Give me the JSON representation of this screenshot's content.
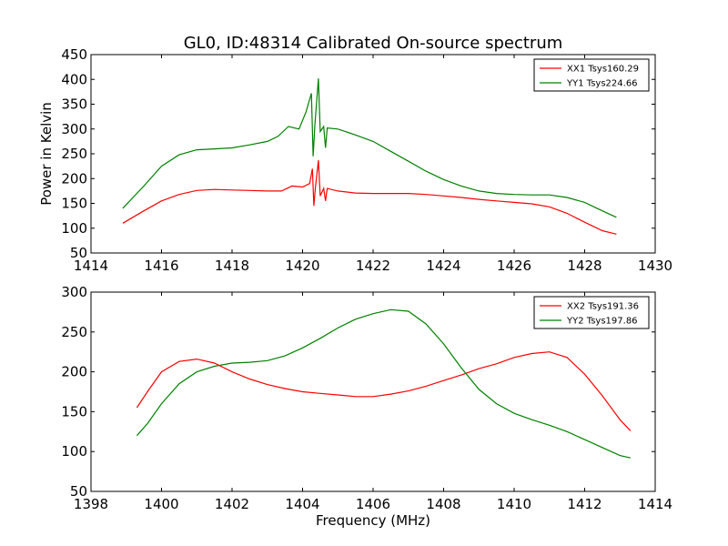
{
  "chart_data": [
    {
      "type": "line",
      "title": "GL0, ID:48314 Calibrated On-source spectrum",
      "xlabel": "",
      "ylabel": "Power in Kelvin",
      "xlim": [
        1414,
        1430
      ],
      "ylim": [
        50,
        450
      ],
      "xticks": [
        1414,
        1416,
        1418,
        1420,
        1422,
        1424,
        1426,
        1428,
        1430
      ],
      "yticks": [
        50,
        100,
        150,
        200,
        250,
        300,
        350,
        400,
        450
      ],
      "grid": false,
      "legend_position": "top-right",
      "series": [
        {
          "name": "XX1 Tsys160.29",
          "color": "#ff0000",
          "x": [
            1414.9,
            1415.5,
            1416.0,
            1416.5,
            1417.0,
            1417.5,
            1418.0,
            1418.5,
            1419.0,
            1419.4,
            1419.7,
            1420.0,
            1420.2,
            1420.28,
            1420.32,
            1420.36,
            1420.45,
            1420.5,
            1420.6,
            1420.65,
            1420.7,
            1421.0,
            1421.5,
            1422.0,
            1422.5,
            1423.0,
            1423.5,
            1424.0,
            1424.5,
            1425.0,
            1425.5,
            1426.0,
            1426.5,
            1427.0,
            1427.5,
            1428.0,
            1428.5,
            1428.9
          ],
          "y": [
            110,
            135,
            155,
            168,
            176,
            178,
            177,
            176,
            175,
            175,
            185,
            183,
            190,
            220,
            145,
            178,
            237,
            165,
            180,
            155,
            180,
            175,
            171,
            170,
            170,
            170,
            168,
            165,
            162,
            158,
            155,
            152,
            149,
            143,
            130,
            112,
            95,
            88
          ]
        },
        {
          "name": "YY1 Tsys224.66",
          "color": "#008000",
          "x": [
            1414.9,
            1415.5,
            1416.0,
            1416.5,
            1417.0,
            1417.5,
            1418.0,
            1418.5,
            1419.0,
            1419.3,
            1419.6,
            1419.9,
            1420.1,
            1420.25,
            1420.3,
            1420.35,
            1420.45,
            1420.5,
            1420.6,
            1420.65,
            1420.7,
            1421.0,
            1421.5,
            1422.0,
            1422.5,
            1423.0,
            1423.5,
            1424.0,
            1424.5,
            1425.0,
            1425.5,
            1426.0,
            1426.5,
            1427.0,
            1427.5,
            1428.0,
            1428.5,
            1428.9
          ],
          "y": [
            140,
            185,
            225,
            248,
            258,
            260,
            262,
            268,
            275,
            285,
            305,
            300,
            335,
            372,
            245,
            310,
            402,
            295,
            305,
            262,
            302,
            300,
            288,
            275,
            255,
            235,
            215,
            198,
            185,
            175,
            170,
            168,
            167,
            167,
            162,
            152,
            135,
            122
          ]
        }
      ]
    },
    {
      "type": "line",
      "title": "",
      "xlabel": "Frequency (MHz)",
      "ylabel": "",
      "xlim": [
        1398,
        1414
      ],
      "ylim": [
        50,
        300
      ],
      "xticks": [
        1398,
        1400,
        1402,
        1404,
        1406,
        1408,
        1410,
        1412,
        1414
      ],
      "yticks": [
        50,
        100,
        150,
        200,
        250,
        300
      ],
      "grid": false,
      "legend_position": "top-right",
      "series": [
        {
          "name": "XX2 Tsys191.36",
          "color": "#ff0000",
          "x": [
            1399.3,
            1399.6,
            1400.0,
            1400.5,
            1401.0,
            1401.5,
            1402.0,
            1402.5,
            1403.0,
            1403.5,
            1404.0,
            1404.5,
            1405.0,
            1405.5,
            1406.0,
            1406.5,
            1407.0,
            1407.5,
            1408.0,
            1408.5,
            1409.0,
            1409.5,
            1410.0,
            1410.5,
            1411.0,
            1411.5,
            1412.0,
            1412.5,
            1413.0,
            1413.3
          ],
          "y": [
            155,
            175,
            200,
            213,
            216,
            211,
            200,
            191,
            184,
            179,
            175,
            173,
            171,
            169,
            169,
            172,
            176,
            182,
            189,
            196,
            204,
            210,
            218,
            223,
            225,
            218,
            197,
            170,
            140,
            126
          ]
        },
        {
          "name": "YY2 Tsys197.86",
          "color": "#008000",
          "x": [
            1399.3,
            1399.6,
            1400.0,
            1400.5,
            1401.0,
            1401.5,
            1402.0,
            1402.5,
            1403.0,
            1403.5,
            1404.0,
            1404.5,
            1405.0,
            1405.5,
            1406.0,
            1406.5,
            1407.0,
            1407.5,
            1408.0,
            1408.5,
            1409.0,
            1409.5,
            1410.0,
            1410.5,
            1411.0,
            1411.5,
            1412.0,
            1412.5,
            1413.0,
            1413.3
          ],
          "y": [
            120,
            135,
            160,
            185,
            200,
            207,
            211,
            212,
            214,
            220,
            230,
            242,
            255,
            266,
            273,
            278,
            276,
            260,
            235,
            205,
            178,
            160,
            148,
            140,
            133,
            125,
            115,
            105,
            95,
            92
          ]
        }
      ]
    }
  ]
}
